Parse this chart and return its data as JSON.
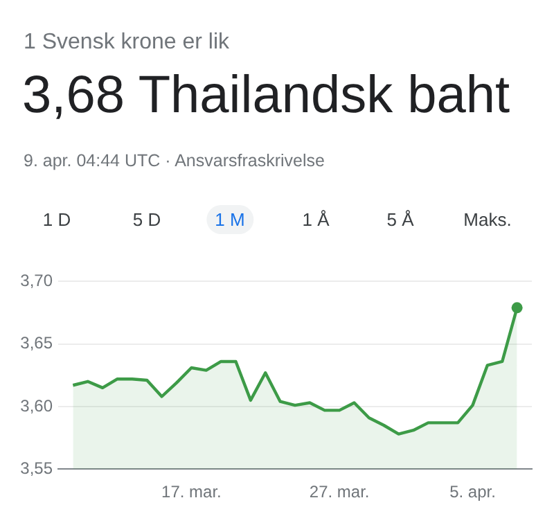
{
  "chart_data": {
    "type": "area",
    "subtitle": "1 Svensk krone er lik",
    "title": "3,68 Thailandsk baht",
    "annotations": [
      "9. apr. 04:44 UTC · Ansvarsfraskrivelse",
      "1 D",
      "5 D",
      "1 M",
      "1 Å",
      "5 Å",
      "Maks."
    ],
    "x": [
      "--03-09",
      "--03-10",
      "--03-11",
      "--03-12",
      "--03-13",
      "--03-14",
      "--03-15",
      "--03-16",
      "--03-17",
      "--03-18",
      "--03-19",
      "--03-20",
      "--03-21",
      "--03-22",
      "--03-23",
      "--03-24",
      "--03-25",
      "--03-26",
      "--03-27",
      "--03-28",
      "--03-29",
      "--03-30",
      "--03-31",
      "--04-01",
      "--04-02",
      "--04-03",
      "--04-04",
      "--04-05",
      "--04-06",
      "--04-07",
      "--04-08"
    ],
    "series": [
      {
        "color": "#3d9b47",
        "values": [
          3.617,
          3.62,
          3.615,
          3.622,
          3.622,
          3.621,
          3.608,
          3.619,
          3.631,
          3.629,
          3.636,
          3.636,
          3.605,
          3.627,
          3.604,
          3.601,
          3.603,
          3.597,
          3.597,
          3.603,
          3.591,
          3.585,
          3.578,
          3.581,
          3.587,
          3.587,
          3.587,
          3.601,
          3.633,
          3.636,
          3.679
        ]
      }
    ],
    "xlim": [
      "--03-08",
      "--04-09"
    ],
    "xticks": [
      {
        "value": "--03-17",
        "label": "17. mar."
      },
      {
        "value": "--03-27",
        "label": "27. mar."
      },
      {
        "value": "--04-05",
        "label": "5. apr."
      }
    ],
    "ylim": [
      3.55,
      3.7
    ],
    "yticks": [
      {
        "value": 3.55,
        "label": "3,55"
      },
      {
        "value": 3.6,
        "label": "3,60"
      },
      {
        "value": 3.65,
        "label": "3,65"
      },
      {
        "value": 3.7,
        "label": "3,70"
      }
    ],
    "grid": "y"
  }
}
